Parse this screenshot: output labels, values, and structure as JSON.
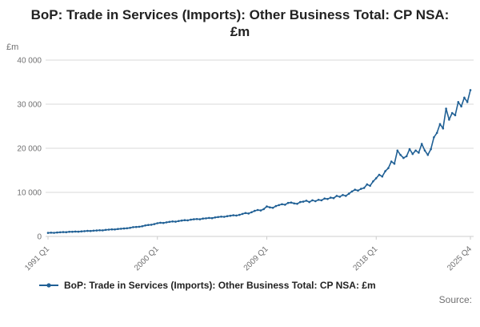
{
  "title": "BoP: Trade in Services (Imports): Other Business Total: CP NSA: £m",
  "y_unit_label": "£m",
  "legend": {
    "label": "BoP: Trade in Services (Imports): Other Business Total: CP NSA: £m"
  },
  "source": "Source:",
  "colors": {
    "line": "#206095",
    "grid": "#d9d9d9",
    "axis": "#cccccc",
    "tick_text": "#707071",
    "title_text": "#222222"
  },
  "chart_data": {
    "type": "line",
    "title": "BoP: Trade in Services (Imports): Other Business Total: CP NSA: £m",
    "xlabel": "",
    "ylabel": "£m",
    "ylim": [
      0,
      40000
    ],
    "y_ticks": [
      0,
      10000,
      20000,
      30000,
      40000
    ],
    "y_tick_labels": [
      "0",
      "10 000",
      "20 000",
      "30 000",
      "40 000"
    ],
    "x_range": {
      "start": "1991 Q1",
      "end": "2025 Q4",
      "frequency": "quarterly"
    },
    "x_ticks": [
      "1991 Q1",
      "2000 Q1",
      "2009 Q1",
      "2018 Q1",
      "2025 Q4"
    ],
    "grid": "horizontal",
    "legend_position": "bottom-left",
    "marker": "dot",
    "series": [
      {
        "name": "BoP: Trade in Services (Imports): Other Business Total: CP NSA: £m",
        "values": [
          800,
          850,
          820,
          900,
          950,
          980,
          960,
          1050,
          1050,
          1100,
          1080,
          1150,
          1200,
          1250,
          1230,
          1300,
          1350,
          1400,
          1380,
          1500,
          1550,
          1600,
          1580,
          1700,
          1750,
          1800,
          1850,
          1950,
          2100,
          2150,
          2200,
          2300,
          2500,
          2600,
          2650,
          2800,
          3000,
          3100,
          3050,
          3200,
          3300,
          3400,
          3350,
          3500,
          3600,
          3700,
          3650,
          3800,
          3900,
          3950,
          3900,
          4050,
          4100,
          4200,
          4150,
          4300,
          4400,
          4500,
          4450,
          4600,
          4700,
          4800,
          4750,
          4900,
          5100,
          5300,
          5200,
          5500,
          5800,
          6000,
          5900,
          6200,
          6800,
          6600,
          6500,
          6900,
          7100,
          7300,
          7200,
          7600,
          7700,
          7500,
          7400,
          7800,
          7900,
          8100,
          7800,
          8200,
          8000,
          8300,
          8200,
          8600,
          8500,
          8800,
          8700,
          9200,
          9000,
          9400,
          9200,
          9700,
          10200,
          10600,
          10400,
          10800,
          11000,
          11800,
          11500,
          12500,
          13200,
          14000,
          13600,
          14800,
          15500,
          17000,
          16500,
          19500,
          18500,
          17800,
          18200,
          19800,
          18700,
          19500,
          19000,
          21000,
          19500,
          18500,
          19800,
          22500,
          23500,
          25500,
          24500,
          29000,
          26500,
          28000,
          27500,
          30500,
          29500,
          31500,
          30500,
          33200
        ]
      }
    ]
  }
}
